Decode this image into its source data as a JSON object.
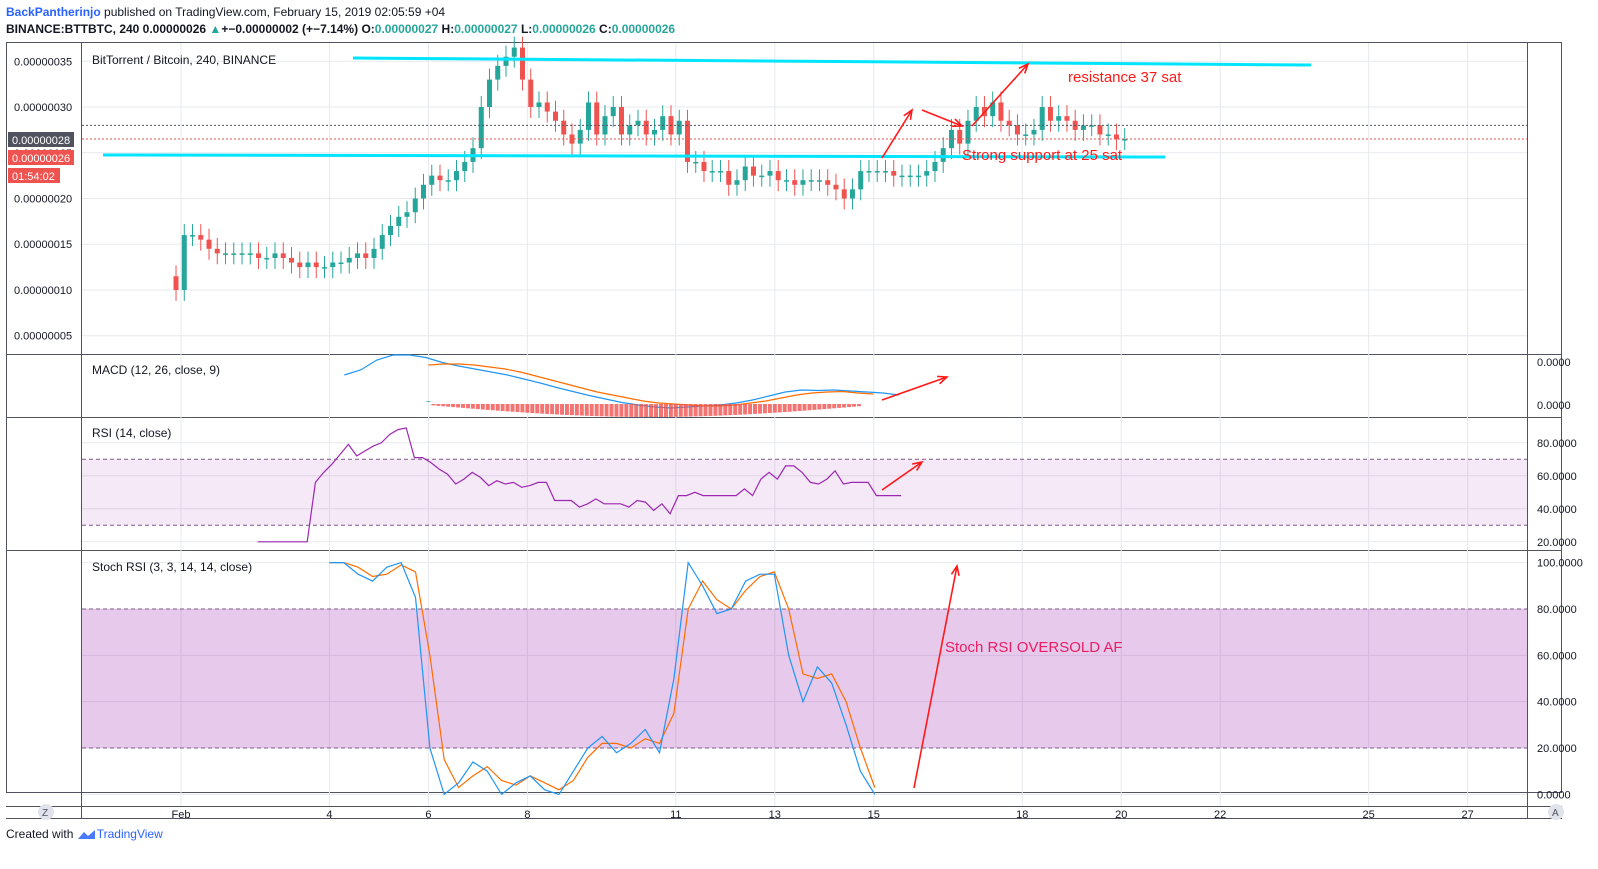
{
  "header": {
    "user": "BackPantherinjo",
    "published_text": " published on TradingView.com, February 15, 2019 02:05:59 +04",
    "symbol_line": "BINANCE:BTTBTC, 240  0.00000026",
    "change_arrow": "▲",
    "change_text": "+−0.00000002 (+−7.14%)",
    "o_label": "O:",
    "o_value": "0.00000027",
    "h_label": "H:",
    "h_value": "0.00000027",
    "l_label": "L:",
    "l_value": "0.00000026",
    "c_label": "C:",
    "c_value": "0.00000026"
  },
  "footer": {
    "created_with": "Created with",
    "brand": "TradingView"
  },
  "colors": {
    "up": "#26a69a",
    "down": "#ef5350",
    "line_cyan": "#00e5ff",
    "annotation": "#ff1a1a",
    "macd": "#2196f3",
    "signal": "#ff6d00",
    "rsi": "#9c27b0",
    "stoch_k": "#2196f3",
    "stoch_d": "#ff6d00"
  },
  "chart_data": [
    {
      "type": "candlestick",
      "title": "BitTorrent / Bitcoin, 240, BINANCE",
      "ylim": [
        3e-08,
        3.7e-07
      ],
      "y_ticks": [
        "0.00000035",
        "0.00000030",
        "0.00000025",
        "0.00000020",
        "0.00000015",
        "0.00000010",
        "0.00000005"
      ],
      "y_tick_values": [
        3.5e-07,
        3e-07,
        2.5e-07,
        2e-07,
        1.5e-07,
        1e-07,
        5e-08
      ],
      "last_price_label": "0.00000028",
      "last_price_value": 2.8e-07,
      "current_price_label": "0.00000026",
      "current_price_value": 2.65e-07,
      "countdown": "01:54:02",
      "x_ticks": [
        "Feb",
        "4",
        "6",
        "8",
        "11",
        "13",
        "15",
        "18",
        "20",
        "22",
        "25",
        "27"
      ],
      "x_tick_days": [
        1,
        4,
        6,
        8,
        11,
        13,
        15,
        18,
        20,
        22,
        25,
        27
      ],
      "x_range_days": [
        -1,
        28.2
      ],
      "candles_start_day": 0.9,
      "candle_step_days": 0.1667,
      "close": [
        0.1,
        0.16,
        0.16,
        0.155,
        0.145,
        0.14,
        0.14,
        0.14,
        0.14,
        0.14,
        0.135,
        0.135,
        0.14,
        0.135,
        0.13,
        0.125,
        0.13,
        0.125,
        0.125,
        0.13,
        0.13,
        0.135,
        0.14,
        0.135,
        0.145,
        0.16,
        0.17,
        0.18,
        0.185,
        0.2,
        0.215,
        0.225,
        0.22,
        0.22,
        0.23,
        0.24,
        0.255,
        0.3,
        0.33,
        0.345,
        0.355,
        0.365,
        0.33,
        0.3,
        0.305,
        0.295,
        0.285,
        0.27,
        0.26,
        0.275,
        0.305,
        0.27,
        0.29,
        0.3,
        0.27,
        0.28,
        0.285,
        0.27,
        0.275,
        0.29,
        0.27,
        0.285,
        0.24,
        0.24,
        0.23,
        0.23,
        0.23,
        0.215,
        0.22,
        0.235,
        0.225,
        0.225,
        0.23,
        0.22,
        0.22,
        0.215,
        0.22,
        0.22,
        0.22,
        0.215,
        0.21,
        0.2,
        0.21,
        0.23,
        0.23,
        0.23,
        0.23,
        0.225,
        0.225,
        0.225,
        0.225,
        0.23,
        0.24,
        0.255,
        0.275,
        0.26,
        0.285,
        0.3,
        0.29,
        0.305,
        0.285,
        0.28,
        0.27,
        0.27,
        0.275,
        0.3,
        0.285,
        0.29,
        0.285,
        0.275,
        0.28,
        0.28,
        0.27,
        0.27,
        0.265,
        0.265
      ],
      "annotations": [
        {
          "text": "resistance 37 sat"
        },
        {
          "text": "Strong support at 25 sat"
        }
      ]
    },
    {
      "type": "line",
      "title": "MACD (12, 26, close, 9)",
      "y_ticks": [
        "0.0000",
        "0.0000"
      ],
      "series": [
        {
          "name": "MACD"
        },
        {
          "name": "Signal"
        },
        {
          "name": "Histogram"
        }
      ]
    },
    {
      "type": "line",
      "title": "RSI (14, close)",
      "ylim": [
        15,
        95
      ],
      "y_ticks": [
        "80.0000",
        "60.0000",
        "40.0000",
        "20.0000"
      ],
      "y_tick_values": [
        80,
        60,
        40,
        20
      ],
      "band": [
        30,
        70
      ],
      "x_start_day": 2.55,
      "step_days": 0.1667,
      "values": [
        20,
        20,
        20,
        20,
        20,
        20,
        20,
        56,
        62,
        67,
        73,
        79,
        72,
        75,
        78,
        80,
        85,
        88,
        89,
        71,
        71,
        68,
        64,
        61,
        55,
        58,
        62,
        59,
        54,
        57,
        55,
        56,
        53,
        54,
        56,
        56,
        45,
        45,
        45,
        41,
        43,
        46,
        43,
        43,
        43,
        41,
        45,
        44,
        39,
        43,
        37,
        48,
        48,
        50,
        48,
        48,
        48,
        48,
        48,
        52,
        48,
        58,
        62,
        58,
        66,
        66,
        62,
        56,
        55,
        58,
        63,
        55,
        56,
        56,
        56,
        48,
        48,
        48,
        48
      ]
    },
    {
      "type": "line",
      "title": "Stoch RSI (3, 3, 14, 14, close)",
      "ylim": [
        -5,
        105
      ],
      "y_ticks": [
        "100.0000",
        "80.0000",
        "60.0000",
        "40.0000",
        "20.0000",
        "0.0000"
      ],
      "y_tick_values": [
        100,
        80,
        60,
        40,
        20,
        0
      ],
      "band": [
        20,
        80
      ],
      "annotation": "Stoch RSI OVERSOLD AF"
    }
  ],
  "bottom_buttons": {
    "left": "Z",
    "right": "A"
  }
}
